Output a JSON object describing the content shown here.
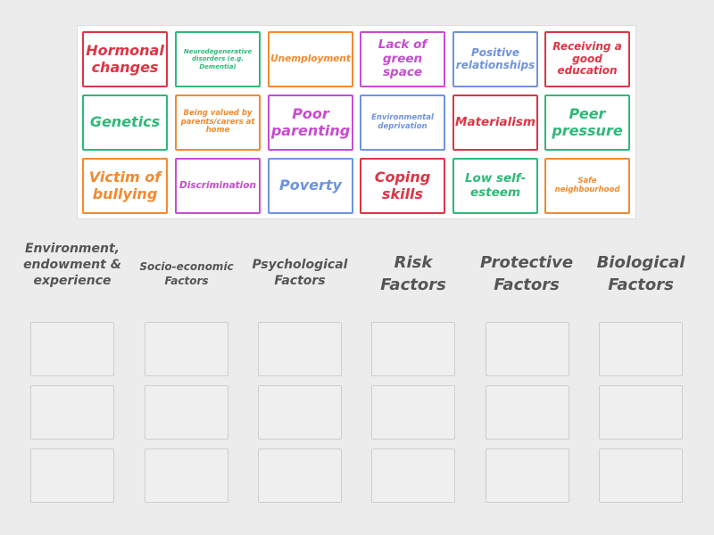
{
  "colors": {
    "red": "#dc3545",
    "green": "#2fb879",
    "orange": "#f28a2e",
    "purple": "#c84bd0",
    "blue": "#6f93df"
  },
  "tiles": [
    {
      "label": "Hormonal changes",
      "color": "red"
    },
    {
      "label": "Neurodegenerative disorders (e.g. Dementia)",
      "color": "green"
    },
    {
      "label": "Unemployment",
      "color": "orange"
    },
    {
      "label": "Lack of green space",
      "color": "purple"
    },
    {
      "label": "Positive relationships",
      "color": "blue"
    },
    {
      "label": "Receiving a good education",
      "color": "red"
    },
    {
      "label": "Genetics",
      "color": "green"
    },
    {
      "label": "Being valued by parents/carers at home",
      "color": "orange"
    },
    {
      "label": "Poor parenting",
      "color": "purple"
    },
    {
      "label": "Environmental deprivation",
      "color": "blue"
    },
    {
      "label": "Materialism",
      "color": "red"
    },
    {
      "label": "Peer pressure",
      "color": "green"
    },
    {
      "label": "Victim of bullying",
      "color": "orange"
    },
    {
      "label": "Discrimination",
      "color": "purple"
    },
    {
      "label": "Poverty",
      "color": "blue"
    },
    {
      "label": "Coping skills",
      "color": "red"
    },
    {
      "label": "Low self-esteem",
      "color": "green"
    },
    {
      "label": "Safe neighbourhood",
      "color": "orange"
    }
  ],
  "categories": [
    {
      "label": "Environment, endowment & experience"
    },
    {
      "label": "Socio-economic Factors"
    },
    {
      "label": "Psychological Factors"
    },
    {
      "label": "Risk Factors"
    },
    {
      "label": "Protective Factors"
    },
    {
      "label": "Biological Factors"
    }
  ]
}
